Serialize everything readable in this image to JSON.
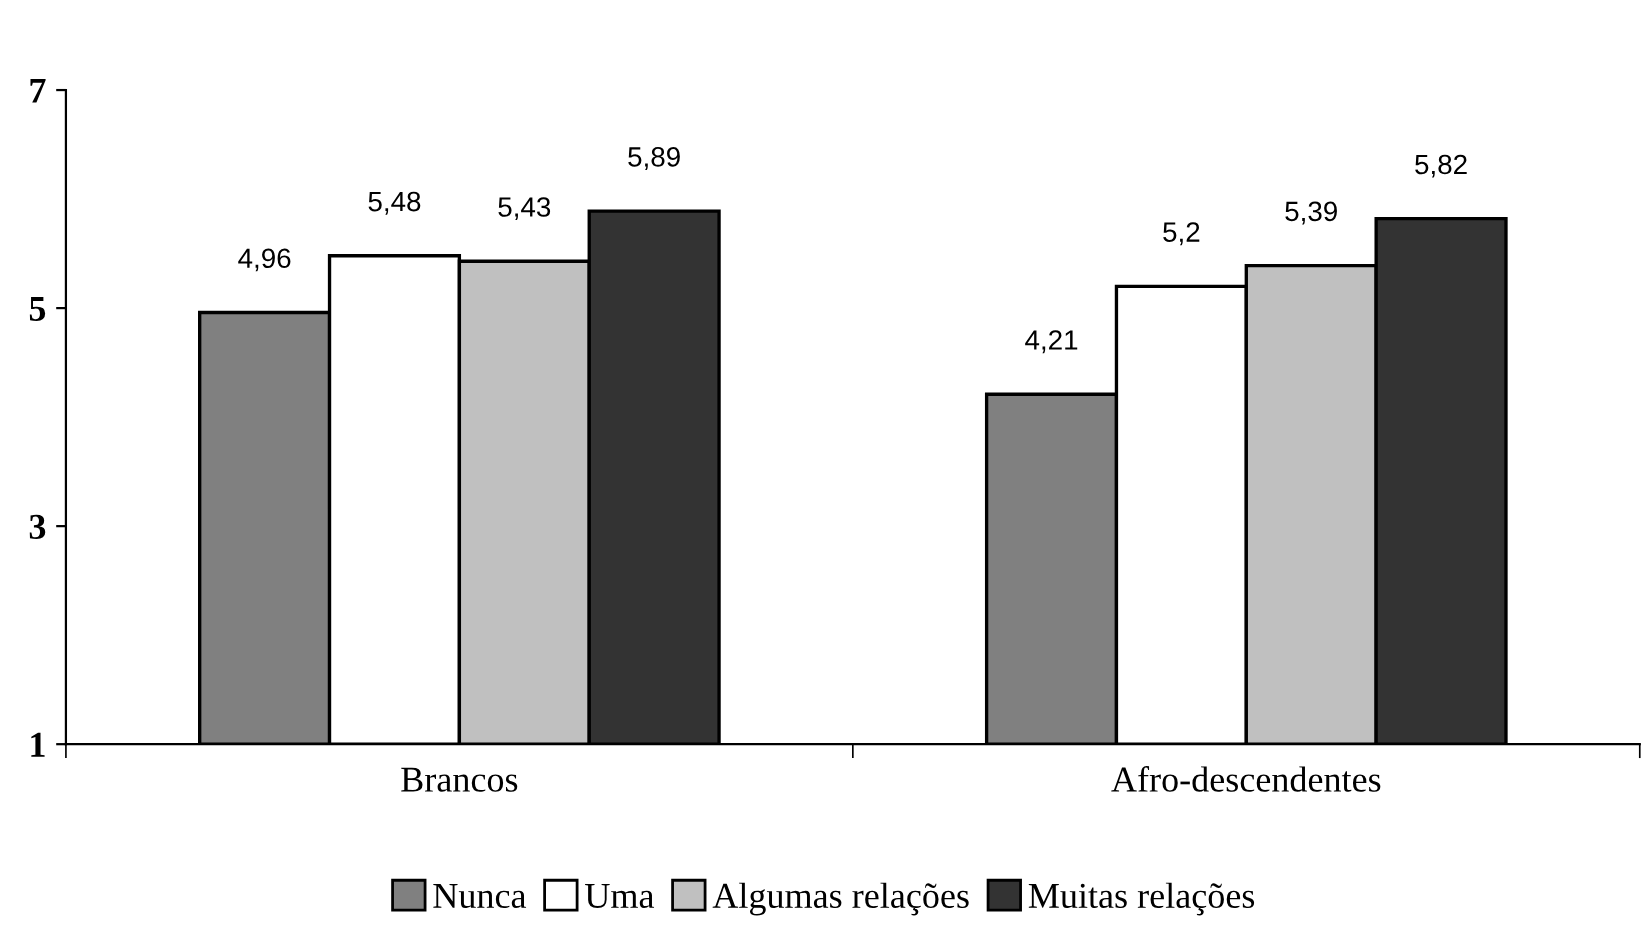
{
  "chart_data": {
    "type": "bar",
    "categories": [
      "Brancos",
      "Afro-descendentes"
    ],
    "series": [
      {
        "name": "Nunca",
        "color": "#808080",
        "values": [
          4.96,
          4.21
        ],
        "value_labels": [
          "4,96",
          "4,21"
        ]
      },
      {
        "name": "Uma",
        "color": "#ffffff",
        "values": [
          5.48,
          5.2
        ],
        "value_labels": [
          "5,48",
          "5,2"
        ]
      },
      {
        "name": "Algumas relações",
        "color": "#c0c0c0",
        "values": [
          5.43,
          5.39
        ],
        "value_labels": [
          "5,43",
          "5,39"
        ]
      },
      {
        "name": "Muitas relações",
        "color": "#333333",
        "values": [
          5.89,
          5.82
        ],
        "value_labels": [
          "5,89",
          "5,82"
        ]
      }
    ],
    "ylim": [
      1,
      7
    ],
    "yticks": [
      1,
      3,
      5,
      7
    ],
    "grid": false,
    "legend": "bottom"
  }
}
